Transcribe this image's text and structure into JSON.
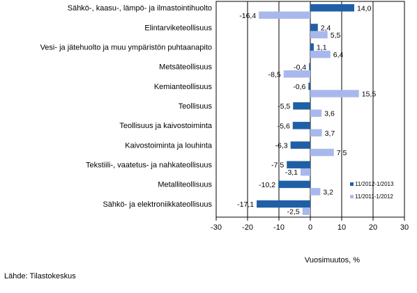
{
  "chart_data": {
    "type": "bar",
    "orientation": "horizontal",
    "categories": [
      "Sähkö-, kaasu-, lämpö- ja ilmastointihuolto",
      "Elintarviketeollisuus",
      "Vesi- ja jätehuolto ja muu ympäristön puhtaanapito",
      "Metsäteollisuus",
      "Kemianteollisuus",
      "Teollisuus",
      "Teollisuus ja kaivostoiminta",
      "Kaivostoiminta ja louhinta",
      "Tekstiili-, vaatetus- ja nahkateollisuus",
      "Metalliteollisuus",
      "Sähkö- ja elektroniikkateollisuus"
    ],
    "series": [
      {
        "name": "11/2012-1/2013",
        "color": "#1f5fa6",
        "values": [
          14.0,
          2.4,
          1.1,
          -0.4,
          -0.6,
          -5.5,
          -5.6,
          -6.3,
          -7.5,
          -10.2,
          -17.1
        ],
        "labels": [
          "14,0",
          "2,4",
          "1,1",
          "-0,4",
          "-0,6",
          "-5,5",
          "-5,6",
          "-6,3",
          "-7,5",
          "-10,2",
          "-17,1"
        ]
      },
      {
        "name": "11/2011-1/2012",
        "color": "#a9b8ec",
        "values": [
          -16.4,
          5.5,
          6.4,
          -8.5,
          15.5,
          3.6,
          3.7,
          7.5,
          -3.1,
          3.2,
          -2.5
        ],
        "labels": [
          "-16,4",
          "5,5",
          "6,4",
          "-8,5",
          "15,5",
          "3,6",
          "3,7",
          "7,5",
          "-3,1",
          "3,2",
          "-2,5"
        ]
      }
    ],
    "xlim": [
      -30,
      30
    ],
    "xticks": [
      -30,
      -20,
      -10,
      0,
      10,
      20,
      30
    ],
    "xtick_labels": [
      "-30",
      "-20",
      "-10",
      "0",
      "10",
      "20",
      "30"
    ],
    "xlabel": "Vuosimuutos, %",
    "grid": "vertical",
    "legend_position": "bottom-right"
  },
  "source": "Lähde: Tilastokeskus"
}
